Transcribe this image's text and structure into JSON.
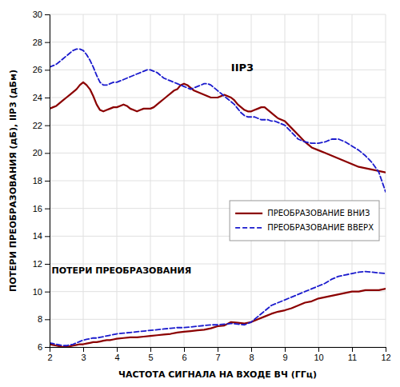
{
  "chart_data": {
    "type": "line",
    "xlabel": "ЧАСТОТА СИГНАЛА НА ВХОДЕ ВЧ (ГГц)",
    "ylabel": "ПОТЕРИ ПРЕОБРАЗОВАНИЯ (дБ), IIP3 (дБм)",
    "xlim": [
      2,
      12
    ],
    "ylim": [
      6,
      30
    ],
    "xticks": [
      2,
      3,
      4,
      5,
      6,
      7,
      8,
      9,
      10,
      11,
      12
    ],
    "yticks": [
      6,
      8,
      10,
      12,
      14,
      16,
      18,
      20,
      22,
      24,
      26,
      28,
      30
    ],
    "grid": true,
    "legend": "right",
    "annotations": [
      {
        "text": "IIP3"
      },
      {
        "text": "ПОТЕРИ ПРЕОБРАЗОВАНИЯ"
      }
    ],
    "series": [
      {
        "name": "ПРЕОБРАЗОВАНИЕ ВНИЗ",
        "color": "#8b0000",
        "line_style": "solid",
        "x": [
          2.0,
          2.1,
          2.2,
          2.3,
          2.4,
          2.5,
          2.6,
          2.7,
          2.8,
          2.9,
          3.0,
          3.1,
          3.2,
          3.3,
          3.4,
          3.5,
          3.6,
          3.7,
          3.8,
          3.9,
          4.0,
          4.1,
          4.2,
          4.3,
          4.4,
          4.5,
          4.6,
          4.7,
          4.8,
          4.9,
          5.0,
          5.1,
          5.2,
          5.3,
          5.4,
          5.5,
          5.6,
          5.7,
          5.8,
          5.9,
          6.0,
          6.1,
          6.2,
          6.3,
          6.4,
          6.5,
          6.6,
          6.7,
          6.8,
          6.9,
          7.0,
          7.1,
          7.2,
          7.3,
          7.4,
          7.5,
          7.6,
          7.7,
          7.8,
          7.9,
          8.0,
          8.1,
          8.2,
          8.3,
          8.4,
          8.5,
          8.6,
          8.7,
          8.8,
          8.9,
          9.0,
          9.2,
          9.4,
          9.6,
          9.8,
          10.0,
          10.2,
          10.4,
          10.6,
          10.8,
          11.0,
          11.2,
          11.4,
          11.6,
          11.8,
          12.0
        ],
        "values": [
          23.2,
          23.3,
          23.4,
          23.6,
          23.8,
          24.0,
          24.2,
          24.4,
          24.6,
          24.9,
          25.1,
          24.9,
          24.6,
          24.1,
          23.5,
          23.1,
          23.0,
          23.1,
          23.2,
          23.3,
          23.3,
          23.4,
          23.5,
          23.4,
          23.2,
          23.1,
          23.0,
          23.1,
          23.2,
          23.2,
          23.2,
          23.3,
          23.5,
          23.7,
          23.9,
          24.1,
          24.3,
          24.5,
          24.6,
          24.9,
          25.0,
          24.9,
          24.7,
          24.5,
          24.4,
          24.3,
          24.2,
          24.1,
          24.0,
          24.0,
          24.0,
          24.1,
          24.2,
          24.1,
          24.0,
          23.8,
          23.5,
          23.3,
          23.1,
          23.0,
          23.0,
          23.1,
          23.2,
          23.3,
          23.3,
          23.1,
          22.9,
          22.7,
          22.5,
          22.4,
          22.3,
          21.8,
          21.3,
          20.8,
          20.4,
          20.2,
          20.0,
          19.8,
          19.6,
          19.4,
          19.2,
          19.0,
          18.9,
          18.8,
          18.7,
          18.6
        ]
      },
      {
        "name": "ПРЕОБРАЗОВАНИЕ ВВЕРХ",
        "color": "#1a1acd",
        "line_style": "dashed",
        "x": [
          2.0,
          2.1,
          2.2,
          2.3,
          2.4,
          2.5,
          2.6,
          2.7,
          2.8,
          2.9,
          3.0,
          3.1,
          3.2,
          3.3,
          3.4,
          3.5,
          3.6,
          3.7,
          3.8,
          3.9,
          4.0,
          4.1,
          4.2,
          4.3,
          4.4,
          4.5,
          4.6,
          4.7,
          4.8,
          4.9,
          5.0,
          5.1,
          5.2,
          5.3,
          5.4,
          5.5,
          5.6,
          5.7,
          5.8,
          5.9,
          6.0,
          6.1,
          6.2,
          6.3,
          6.4,
          6.5,
          6.6,
          6.7,
          6.8,
          6.9,
          7.0,
          7.1,
          7.2,
          7.3,
          7.4,
          7.5,
          7.6,
          7.7,
          7.8,
          7.9,
          8.0,
          8.1,
          8.2,
          8.3,
          8.4,
          8.5,
          8.6,
          8.7,
          8.8,
          8.9,
          9.0,
          9.2,
          9.4,
          9.6,
          9.8,
          10.0,
          10.2,
          10.4,
          10.6,
          10.8,
          11.0,
          11.2,
          11.4,
          11.6,
          11.8,
          12.0
        ],
        "values": [
          26.2,
          26.3,
          26.4,
          26.6,
          26.8,
          27.0,
          27.2,
          27.4,
          27.5,
          27.5,
          27.4,
          27.1,
          26.7,
          26.2,
          25.6,
          25.1,
          24.9,
          24.9,
          25.0,
          25.1,
          25.1,
          25.2,
          25.3,
          25.4,
          25.5,
          25.6,
          25.7,
          25.8,
          25.9,
          26.0,
          26.0,
          25.9,
          25.8,
          25.6,
          25.4,
          25.3,
          25.2,
          25.1,
          25.0,
          24.9,
          24.8,
          24.7,
          24.6,
          24.7,
          24.8,
          24.9,
          25.0,
          25.0,
          24.9,
          24.7,
          24.5,
          24.3,
          24.1,
          23.9,
          23.7,
          23.5,
          23.2,
          22.9,
          22.7,
          22.6,
          22.6,
          22.6,
          22.5,
          22.4,
          22.4,
          22.4,
          22.3,
          22.3,
          22.2,
          22.1,
          22.0,
          21.5,
          21.0,
          20.8,
          20.7,
          20.7,
          20.8,
          21.0,
          21.0,
          20.8,
          20.5,
          20.2,
          19.8,
          19.3,
          18.6,
          17.2
        ]
      },
      {
        "name": "ПРЕОБРАЗОВАНИЕ ВНИЗ",
        "color": "#8b0000",
        "line_style": "solid",
        "x": [
          2.0,
          2.1,
          2.2,
          2.3,
          2.4,
          2.5,
          2.6,
          2.7,
          2.8,
          2.9,
          3.0,
          3.1,
          3.2,
          3.3,
          3.4,
          3.5,
          3.6,
          3.7,
          3.8,
          3.9,
          4.0,
          4.2,
          4.4,
          4.6,
          4.8,
          5.0,
          5.2,
          5.4,
          5.6,
          5.8,
          6.0,
          6.2,
          6.4,
          6.6,
          6.8,
          7.0,
          7.2,
          7.4,
          7.6,
          7.8,
          8.0,
          8.2,
          8.4,
          8.6,
          8.8,
          9.0,
          9.2,
          9.4,
          9.6,
          9.8,
          10.0,
          10.2,
          10.4,
          10.6,
          10.8,
          11.0,
          11.2,
          11.4,
          11.6,
          11.8,
          12.0
        ],
        "values": [
          6.2,
          6.15,
          6.1,
          6.05,
          6.0,
          6.0,
          6.05,
          6.1,
          6.15,
          6.2,
          6.2,
          6.25,
          6.3,
          6.35,
          6.35,
          6.4,
          6.45,
          6.5,
          6.5,
          6.55,
          6.6,
          6.65,
          6.7,
          6.7,
          6.75,
          6.8,
          6.85,
          6.9,
          6.95,
          7.05,
          7.1,
          7.15,
          7.2,
          7.25,
          7.35,
          7.5,
          7.55,
          7.8,
          7.75,
          7.7,
          7.8,
          8.0,
          8.2,
          8.4,
          8.55,
          8.65,
          8.8,
          9.0,
          9.2,
          9.3,
          9.5,
          9.6,
          9.7,
          9.8,
          9.9,
          10.0,
          10.0,
          10.1,
          10.1,
          10.1,
          10.2
        ]
      },
      {
        "name": "ПРЕОБРАЗОВАНИЕ ВВЕРХ",
        "color": "#1a1acd",
        "line_style": "dashed",
        "x": [
          2.0,
          2.1,
          2.2,
          2.3,
          2.4,
          2.5,
          2.6,
          2.7,
          2.8,
          2.9,
          3.0,
          3.1,
          3.2,
          3.3,
          3.4,
          3.5,
          3.6,
          3.7,
          3.8,
          3.9,
          4.0,
          4.2,
          4.4,
          4.6,
          4.8,
          5.0,
          5.2,
          5.4,
          5.6,
          5.8,
          6.0,
          6.2,
          6.4,
          6.6,
          6.8,
          7.0,
          7.2,
          7.4,
          7.6,
          7.8,
          8.0,
          8.2,
          8.4,
          8.6,
          8.8,
          9.0,
          9.2,
          9.4,
          9.6,
          9.8,
          10.0,
          10.2,
          10.4,
          10.6,
          10.8,
          11.0,
          11.2,
          11.4,
          11.6,
          11.8,
          12.0
        ],
        "values": [
          6.3,
          6.25,
          6.2,
          6.15,
          6.1,
          6.1,
          6.15,
          6.2,
          6.3,
          6.4,
          6.5,
          6.55,
          6.6,
          6.65,
          6.65,
          6.7,
          6.75,
          6.8,
          6.85,
          6.9,
          6.95,
          7.0,
          7.05,
          7.1,
          7.15,
          7.2,
          7.25,
          7.3,
          7.35,
          7.4,
          7.4,
          7.45,
          7.5,
          7.55,
          7.6,
          7.6,
          7.65,
          7.7,
          7.65,
          7.6,
          7.8,
          8.2,
          8.6,
          9.0,
          9.2,
          9.4,
          9.6,
          9.8,
          10.0,
          10.2,
          10.4,
          10.6,
          10.9,
          11.1,
          11.2,
          11.3,
          11.4,
          11.45,
          11.4,
          11.35,
          11.3
        ]
      }
    ]
  }
}
